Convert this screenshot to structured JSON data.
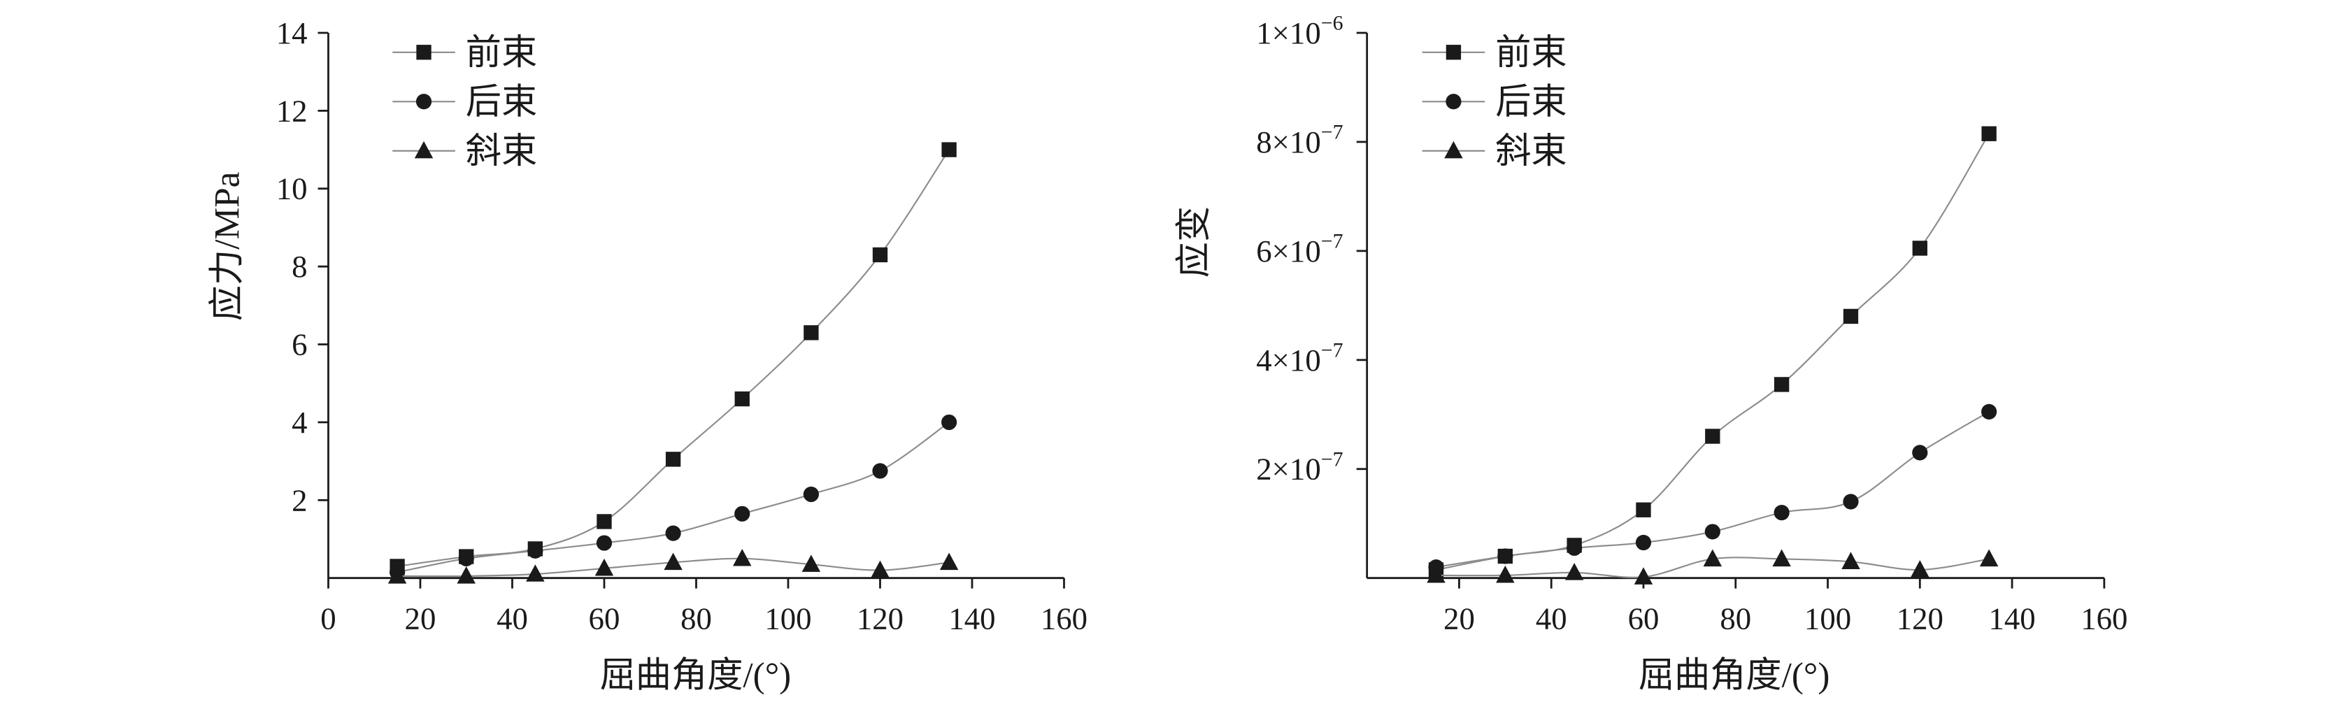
{
  "colors": {
    "axis": "#1a1a1a",
    "series_line": "#8c8c8c",
    "marker": "#1a1a1a",
    "text": "#1a1a1a",
    "background": "#ffffff"
  },
  "chart_data": [
    {
      "type": "line",
      "xlabel": "屈曲角度/(°)",
      "ylabel": "应力/MPa",
      "xlim": [
        0,
        160
      ],
      "ylim": [
        0,
        14
      ],
      "grid": false,
      "legend_position": "top-left",
      "x_ticks": [
        {
          "value": 0,
          "label": "0"
        },
        {
          "value": 20,
          "label": "20"
        },
        {
          "value": 40,
          "label": "40"
        },
        {
          "value": 60,
          "label": "60"
        },
        {
          "value": 80,
          "label": "80"
        },
        {
          "value": 100,
          "label": "100"
        },
        {
          "value": 120,
          "label": "120"
        },
        {
          "value": 140,
          "label": "140"
        },
        {
          "value": 160,
          "label": "160"
        }
      ],
      "y_ticks": [
        {
          "value": 2,
          "label": "2"
        },
        {
          "value": 4,
          "label": "4"
        },
        {
          "value": 6,
          "label": "6"
        },
        {
          "value": 8,
          "label": "8"
        },
        {
          "value": 10,
          "label": "10"
        },
        {
          "value": 12,
          "label": "12"
        },
        {
          "value": 14,
          "label": "14"
        }
      ],
      "x": [
        15,
        30,
        45,
        60,
        75,
        90,
        105,
        120,
        135
      ],
      "series": [
        {
          "name": "前束",
          "marker": "square",
          "values": [
            0.3,
            0.55,
            0.75,
            1.45,
            3.05,
            4.6,
            6.3,
            8.3,
            11.0
          ]
        },
        {
          "name": "后束",
          "marker": "circle",
          "values": [
            0.15,
            0.5,
            0.7,
            0.9,
            1.15,
            1.65,
            2.15,
            2.75,
            4.0
          ]
        },
        {
          "name": "斜束",
          "marker": "triangle",
          "values": [
            0.05,
            0.05,
            0.1,
            0.25,
            0.4,
            0.5,
            0.35,
            0.2,
            0.4
          ]
        }
      ]
    },
    {
      "type": "line",
      "xlabel": "屈曲角度/(°)",
      "ylabel": "应变",
      "xlim": [
        0,
        160
      ],
      "ylim": [
        0,
        1e-06
      ],
      "grid": false,
      "legend_position": "top-left",
      "x_ticks": [
        {
          "value": 20,
          "label": "20"
        },
        {
          "value": 40,
          "label": "40"
        },
        {
          "value": 60,
          "label": "60"
        },
        {
          "value": 80,
          "label": "80"
        },
        {
          "value": 100,
          "label": "100"
        },
        {
          "value": 120,
          "label": "120"
        },
        {
          "value": 140,
          "label": "140"
        },
        {
          "value": 160,
          "label": "160"
        }
      ],
      "y_ticks": [
        {
          "value": 2e-07,
          "base": "2×10",
          "exp": "−7"
        },
        {
          "value": 4e-07,
          "base": "4×10",
          "exp": "−7"
        },
        {
          "value": 6e-07,
          "base": "6×10",
          "exp": "−7"
        },
        {
          "value": 8e-07,
          "base": "8×10",
          "exp": "−7"
        },
        {
          "value": 1e-06,
          "base": "1×10",
          "exp": "−6"
        }
      ],
      "x": [
        15,
        30,
        45,
        60,
        75,
        90,
        105,
        120,
        135
      ],
      "series": [
        {
          "name": "前束",
          "marker": "square",
          "values": [
            1.5e-08,
            4e-08,
            6e-08,
            1.25e-07,
            2.6e-07,
            3.55e-07,
            4.8e-07,
            6.05e-07,
            8.15e-07
          ]
        },
        {
          "name": "后束",
          "marker": "circle",
          "values": [
            2e-08,
            4e-08,
            5.5e-08,
            6.5e-08,
            8.5e-08,
            1.2e-07,
            1.4e-07,
            2.3e-07,
            3.05e-07
          ]
        },
        {
          "name": "斜束",
          "marker": "triangle",
          "values": [
            5e-09,
            5e-09,
            1e-08,
            2e-09,
            3.5e-08,
            3.5e-08,
            3e-08,
            1.5e-08,
            3.5e-08
          ]
        }
      ]
    }
  ]
}
